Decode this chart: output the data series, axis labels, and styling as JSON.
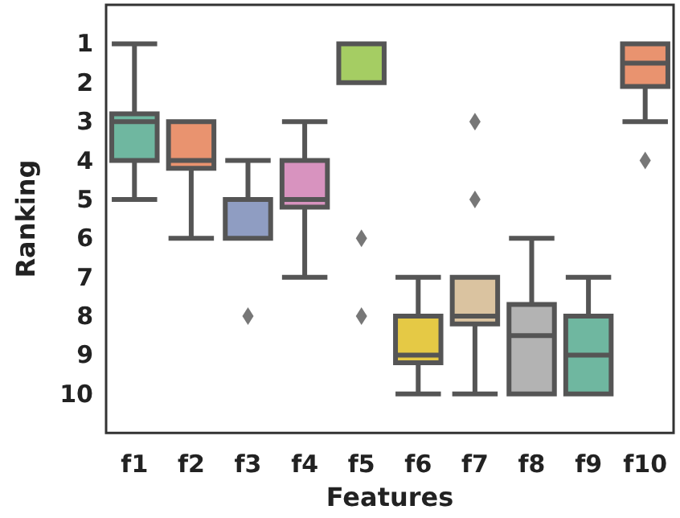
{
  "chart_data": {
    "type": "box",
    "xlabel": "Features",
    "ylabel": "Ranking",
    "categories": [
      "f1",
      "f2",
      "f3",
      "f4",
      "f5",
      "f6",
      "f7",
      "f8",
      "f9",
      "f10"
    ],
    "colors": [
      "#6fb7a0",
      "#e9936f",
      "#8f9dc2",
      "#d893bf",
      "#a5cd63",
      "#e5c945",
      "#dac3a0",
      "#b3b3b3",
      "#6fb7a0",
      "#e9936f"
    ],
    "boxes": [
      {
        "low": 1,
        "q1": 2.8,
        "median": 3,
        "q3": 4,
        "high": 5
      },
      {
        "low": 3,
        "q1": 3,
        "median": 4,
        "q3": 4.2,
        "high": 6
      },
      {
        "low": 4,
        "q1": 5,
        "median": 6,
        "q3": 6,
        "high": 6,
        "outliers": [
          8
        ]
      },
      {
        "low": 3,
        "q1": 4,
        "median": 5,
        "q3": 5.2,
        "high": 7
      },
      {
        "low": 1,
        "q1": 1,
        "median": 2,
        "q3": 2,
        "high": 2,
        "outliers": [
          6,
          8
        ]
      },
      {
        "low": 7,
        "q1": 8,
        "median": 9,
        "q3": 9.2,
        "high": 10
      },
      {
        "low": 7,
        "q1": 7,
        "median": 8,
        "q3": 8.2,
        "high": 10,
        "outliers": [
          3,
          5
        ]
      },
      {
        "low": 6,
        "q1": 7.7,
        "median": 8.5,
        "q3": 10,
        "high": 10
      },
      {
        "low": 7,
        "q1": 8,
        "median": 9,
        "q3": 10,
        "high": 10
      },
      {
        "low": 1,
        "q1": 1,
        "median": 1.5,
        "q3": 2.1,
        "high": 3,
        "outliers": [
          4
        ]
      }
    ],
    "ylim": [
      11,
      0
    ],
    "yticks": [
      1,
      2,
      3,
      4,
      5,
      6,
      7,
      8,
      9,
      10
    ],
    "grid": false,
    "marker": "diamond"
  }
}
